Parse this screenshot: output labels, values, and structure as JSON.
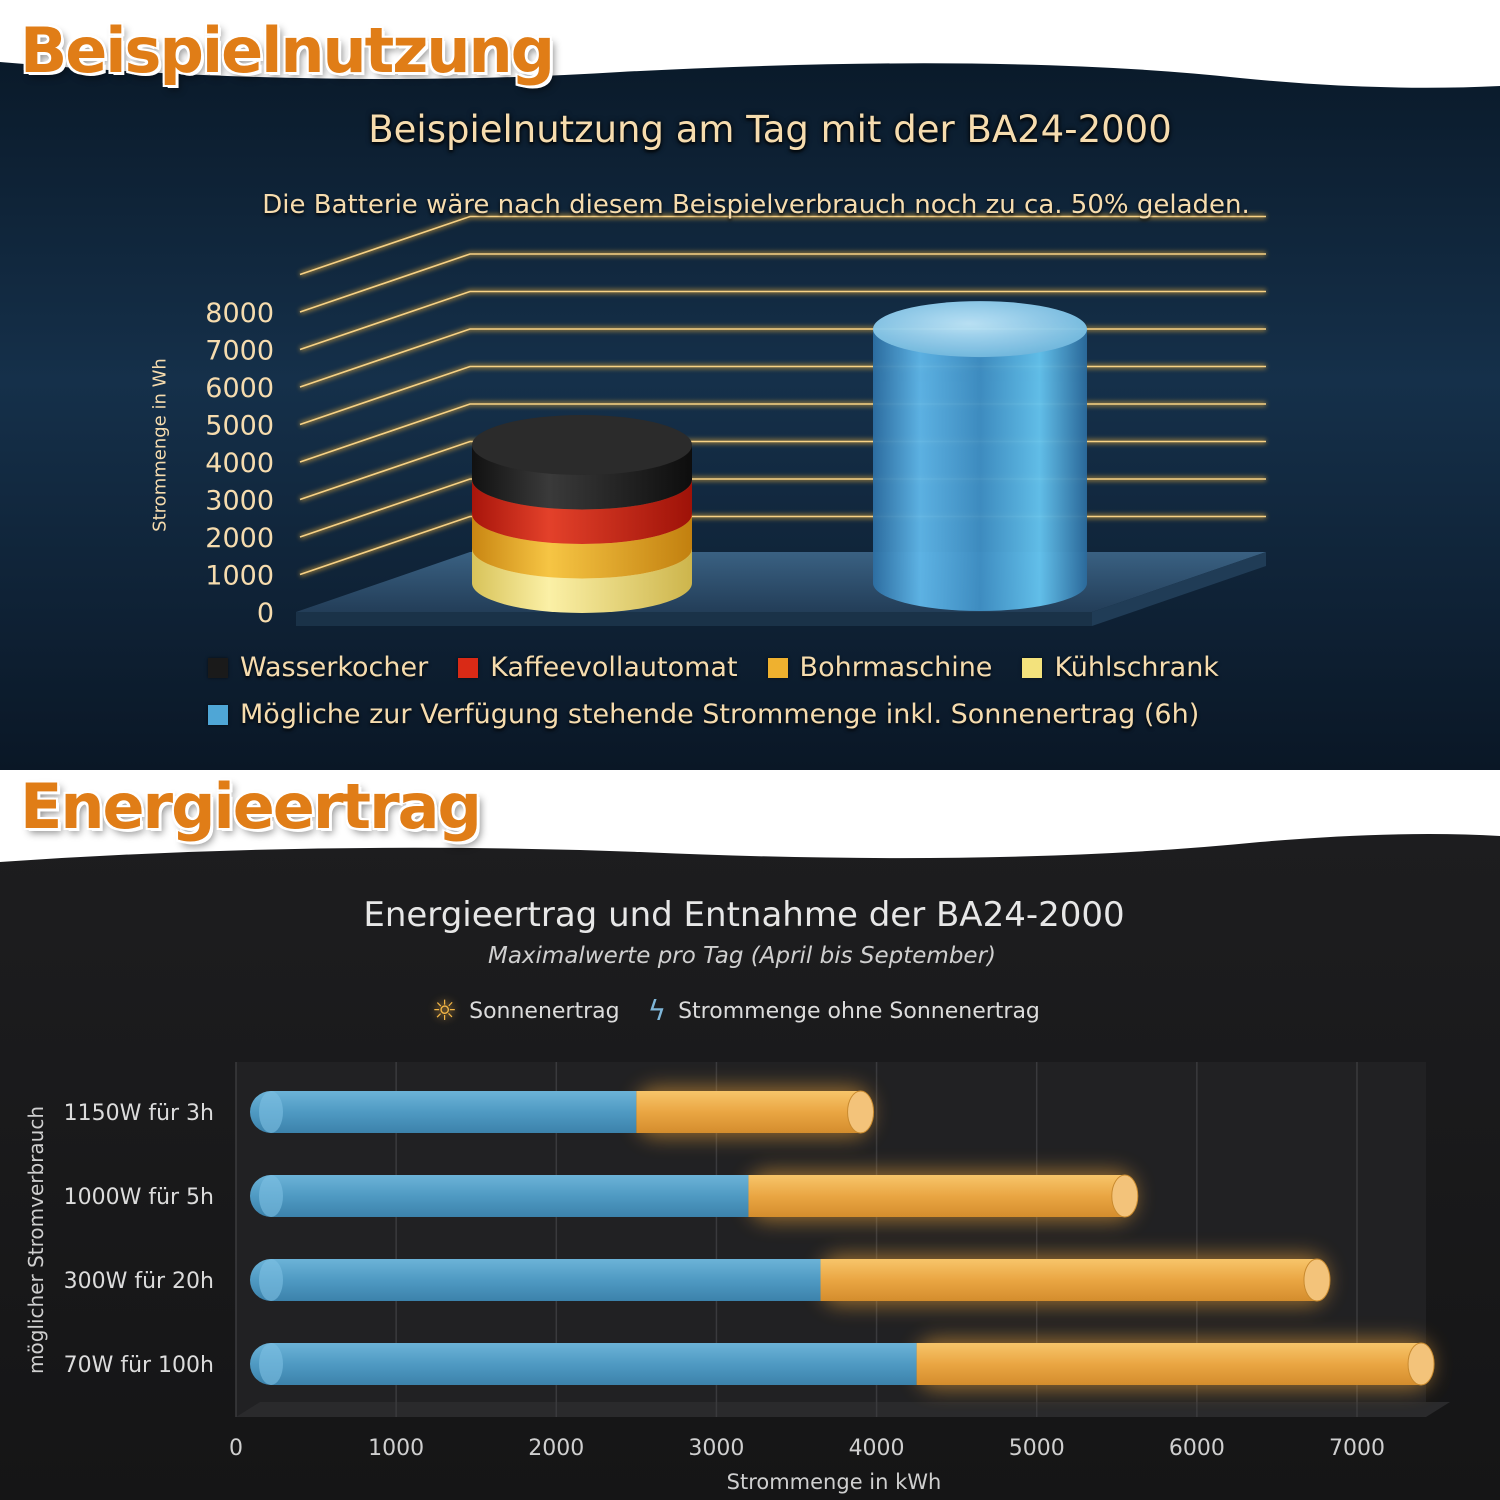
{
  "banners": {
    "top": "Beispielnutzung",
    "bottom": "Energieertrag"
  },
  "chart_data": [
    {
      "type": "bar",
      "style": "3d-stacked-cylinders",
      "title": "Beispielnutzung am Tag mit der BA24-2000",
      "subtitle": "Die Batterie wäre nach diesem Beispielverbrauch noch zu ca. 50% geladen.",
      "ylabel": "Strommenge in Wh",
      "ylim": [
        0,
        8000
      ],
      "yticks": [
        "8000",
        "7000",
        "6000",
        "5000",
        "4000",
        "3000",
        "2000",
        "1000",
        "0"
      ],
      "series": [
        {
          "name": "Kühlschrank",
          "color": "#f3e27c",
          "values": [
            1000,
            0
          ]
        },
        {
          "name": "Bohrmaschine",
          "color": "#efb12f",
          "values": [
            1000,
            0
          ]
        },
        {
          "name": "Kaffeevollautomat",
          "color": "#d92a16",
          "values": [
            1000,
            0
          ]
        },
        {
          "name": "Wasserkocher",
          "color": "#1a1a1a",
          "values": [
            1000,
            0
          ]
        },
        {
          "name": "Mögliche zur Verfügung stehende Strommenge inkl. Sonnenertrag (6h)",
          "color": "#4fa6d6",
          "values": [
            0,
            8000
          ]
        }
      ],
      "legend_rows": [
        [
          {
            "name": "Wasserkocher",
            "color": "#1a1a1a"
          },
          {
            "name": "Kaffeevollautomat",
            "color": "#d92a16"
          },
          {
            "name": "Bohrmaschine",
            "color": "#efb12f"
          },
          {
            "name": "Kühlschrank",
            "color": "#f3e27c"
          }
        ],
        [
          {
            "name": "Mögliche zur Verfügung stehende Strommenge inkl. Sonnenertrag (6h)",
            "color": "#4fa6d6"
          }
        ]
      ]
    },
    {
      "type": "bar",
      "orientation": "horizontal",
      "stacked": true,
      "title": "Energieertrag und Entnahme der BA24-2000",
      "subtitle": "Maximalwerte pro Tag (April bis September)",
      "xlabel": "Strommenge in kWh",
      "ylabel": "möglicher Stromverbrauch",
      "xlim": [
        0,
        7000
      ],
      "xticks": [
        0,
        1000,
        2000,
        3000,
        4000,
        5000,
        6000,
        7000
      ],
      "categories": [
        "1150W für 3h",
        "1000W für 5h",
        "300W für 20h",
        "70W für 100h"
      ],
      "series": [
        {
          "name": "Strommenge ohne Sonnenertrag",
          "color": "#5aa3cc",
          "values": [
            2500,
            3200,
            3650,
            4250
          ]
        },
        {
          "name": "Sonnenertrag",
          "color": "#f0b04c",
          "values": [
            1400,
            2350,
            3100,
            3150
          ]
        }
      ]
    }
  ]
}
